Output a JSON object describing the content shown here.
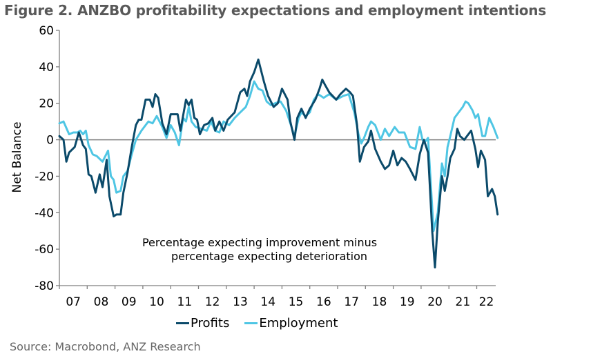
{
  "chart_data": {
    "type": "line",
    "title": "Figure 2.  ANZBO profitability expectations and employment intentions",
    "xlabel": "",
    "ylabel": "Net Balance",
    "ylim": [
      -80,
      60
    ],
    "yticks": [
      60,
      40,
      20,
      0,
      -20,
      -40,
      -60,
      -80
    ],
    "xlim": [
      2007,
      2022.67
    ],
    "xtick_labels": [
      "07",
      "08",
      "09",
      "10",
      "11",
      "12",
      "13",
      "14",
      "15",
      "16",
      "17",
      "18",
      "19",
      "20",
      "21",
      "22"
    ],
    "grid": false,
    "zero_line": true,
    "legend_placement": "bottom-center",
    "annotation": [
      "Percentage expecting improvement minus",
      "percentage expecting deterioration"
    ],
    "series": [
      {
        "name": "Profits",
        "color": "#0b4a6a",
        "points": [
          [
            2007.0,
            2
          ],
          [
            2007.15,
            0
          ],
          [
            2007.25,
            -12
          ],
          [
            2007.35,
            -7
          ],
          [
            2007.55,
            -4
          ],
          [
            2007.7,
            4
          ],
          [
            2007.85,
            -3
          ],
          [
            2007.95,
            -5
          ],
          [
            2008.05,
            -19
          ],
          [
            2008.15,
            -20
          ],
          [
            2008.3,
            -29
          ],
          [
            2008.45,
            -19
          ],
          [
            2008.55,
            -26
          ],
          [
            2008.7,
            -11
          ],
          [
            2008.8,
            -31
          ],
          [
            2008.95,
            -42
          ],
          [
            2009.05,
            -41
          ],
          [
            2009.2,
            -41
          ],
          [
            2009.3,
            -29
          ],
          [
            2009.45,
            -18
          ],
          [
            2009.6,
            -4
          ],
          [
            2009.75,
            8
          ],
          [
            2009.85,
            11
          ],
          [
            2009.95,
            11
          ],
          [
            2010.1,
            22
          ],
          [
            2010.25,
            22
          ],
          [
            2010.35,
            18
          ],
          [
            2010.45,
            25
          ],
          [
            2010.55,
            23
          ],
          [
            2010.7,
            9
          ],
          [
            2010.85,
            3
          ],
          [
            2011.0,
            14
          ],
          [
            2011.1,
            14
          ],
          [
            2011.25,
            14
          ],
          [
            2011.35,
            5
          ],
          [
            2011.55,
            22
          ],
          [
            2011.65,
            19
          ],
          [
            2011.75,
            22
          ],
          [
            2011.85,
            12
          ],
          [
            2011.95,
            11
          ],
          [
            2012.05,
            3
          ],
          [
            2012.2,
            8
          ],
          [
            2012.35,
            9
          ],
          [
            2012.5,
            12
          ],
          [
            2012.6,
            5
          ],
          [
            2012.75,
            10
          ],
          [
            2012.9,
            5
          ],
          [
            2013.05,
            11
          ],
          [
            2013.3,
            15
          ],
          [
            2013.5,
            26
          ],
          [
            2013.65,
            28
          ],
          [
            2013.75,
            24
          ],
          [
            2013.85,
            32
          ],
          [
            2014.0,
            37
          ],
          [
            2014.15,
            44
          ],
          [
            2014.35,
            32
          ],
          [
            2014.5,
            24
          ],
          [
            2014.7,
            18
          ],
          [
            2014.85,
            20
          ],
          [
            2015.0,
            28
          ],
          [
            2015.2,
            22
          ],
          [
            2015.3,
            10
          ],
          [
            2015.45,
            0
          ],
          [
            2015.55,
            12
          ],
          [
            2015.7,
            17
          ],
          [
            2015.85,
            12
          ],
          [
            2016.0,
            17
          ],
          [
            2016.2,
            22
          ],
          [
            2016.35,
            28
          ],
          [
            2016.45,
            33
          ],
          [
            2016.55,
            30
          ],
          [
            2016.7,
            26
          ],
          [
            2016.95,
            22
          ],
          [
            2017.1,
            25
          ],
          [
            2017.3,
            28
          ],
          [
            2017.45,
            26
          ],
          [
            2017.55,
            24
          ],
          [
            2017.7,
            8
          ],
          [
            2017.8,
            -12
          ],
          [
            2017.95,
            -4
          ],
          [
            2018.1,
            -1
          ],
          [
            2018.2,
            5
          ],
          [
            2018.35,
            -5
          ],
          [
            2018.55,
            -12
          ],
          [
            2018.7,
            -16
          ],
          [
            2018.85,
            -14
          ],
          [
            2019.0,
            -6
          ],
          [
            2019.15,
            -14
          ],
          [
            2019.3,
            -10
          ],
          [
            2019.45,
            -12
          ],
          [
            2019.6,
            -16
          ],
          [
            2019.8,
            -22
          ],
          [
            2019.95,
            -8
          ],
          [
            2020.1,
            0
          ],
          [
            2020.25,
            -7
          ],
          [
            2020.4,
            -50
          ],
          [
            2020.5,
            -70
          ],
          [
            2020.6,
            -45
          ],
          [
            2020.75,
            -20
          ],
          [
            2020.85,
            -28
          ],
          [
            2020.95,
            -20
          ],
          [
            2021.05,
            -10
          ],
          [
            2021.2,
            -5
          ],
          [
            2021.3,
            6
          ],
          [
            2021.4,
            2
          ],
          [
            2021.55,
            0
          ],
          [
            2021.7,
            3
          ],
          [
            2021.8,
            5
          ],
          [
            2021.95,
            -5
          ],
          [
            2022.05,
            -15
          ],
          [
            2022.15,
            -6
          ],
          [
            2022.3,
            -11
          ],
          [
            2022.4,
            -31
          ],
          [
            2022.55,
            -27
          ],
          [
            2022.65,
            -31
          ],
          [
            2022.75,
            -41
          ]
        ]
      },
      {
        "name": "Employment",
        "color": "#4fc6e4",
        "points": [
          [
            2007.0,
            9
          ],
          [
            2007.15,
            10
          ],
          [
            2007.35,
            3
          ],
          [
            2007.5,
            4
          ],
          [
            2007.65,
            4
          ],
          [
            2007.75,
            5
          ],
          [
            2007.85,
            3
          ],
          [
            2007.95,
            5
          ],
          [
            2008.05,
            -3
          ],
          [
            2008.2,
            -8
          ],
          [
            2008.35,
            -9
          ],
          [
            2008.55,
            -12
          ],
          [
            2008.75,
            -6
          ],
          [
            2008.85,
            -20
          ],
          [
            2008.95,
            -22
          ],
          [
            2009.05,
            -29
          ],
          [
            2009.2,
            -28
          ],
          [
            2009.3,
            -20
          ],
          [
            2009.45,
            -17
          ],
          [
            2009.6,
            -8
          ],
          [
            2009.75,
            0
          ],
          [
            2009.95,
            5
          ],
          [
            2010.1,
            8
          ],
          [
            2010.2,
            10
          ],
          [
            2010.35,
            9
          ],
          [
            2010.5,
            13
          ],
          [
            2010.7,
            7
          ],
          [
            2010.85,
            1
          ],
          [
            2011.0,
            8
          ],
          [
            2011.15,
            4
          ],
          [
            2011.3,
            -3
          ],
          [
            2011.45,
            12
          ],
          [
            2011.55,
            10
          ],
          [
            2011.65,
            18
          ],
          [
            2011.75,
            10
          ],
          [
            2011.9,
            7
          ],
          [
            2012.1,
            6
          ],
          [
            2012.3,
            5
          ],
          [
            2012.45,
            10
          ],
          [
            2012.6,
            5
          ],
          [
            2012.75,
            4
          ],
          [
            2012.9,
            10
          ],
          [
            2013.1,
            8
          ],
          [
            2013.3,
            12
          ],
          [
            2013.5,
            15
          ],
          [
            2013.7,
            18
          ],
          [
            2013.85,
            24
          ],
          [
            2014.0,
            32
          ],
          [
            2014.15,
            28
          ],
          [
            2014.3,
            27
          ],
          [
            2014.45,
            21
          ],
          [
            2014.6,
            19
          ],
          [
            2014.75,
            20
          ],
          [
            2014.95,
            21
          ],
          [
            2015.15,
            16
          ],
          [
            2015.3,
            9
          ],
          [
            2015.45,
            2
          ],
          [
            2015.6,
            12
          ],
          [
            2015.7,
            15
          ],
          [
            2015.85,
            13
          ],
          [
            2016.0,
            15
          ],
          [
            2016.15,
            22
          ],
          [
            2016.3,
            25
          ],
          [
            2016.5,
            23
          ],
          [
            2016.7,
            25
          ],
          [
            2016.95,
            22
          ],
          [
            2017.2,
            24
          ],
          [
            2017.4,
            25
          ],
          [
            2017.6,
            15
          ],
          [
            2017.75,
            3
          ],
          [
            2017.85,
            -2
          ],
          [
            2017.95,
            1
          ],
          [
            2018.1,
            7
          ],
          [
            2018.2,
            10
          ],
          [
            2018.35,
            8
          ],
          [
            2018.55,
            0
          ],
          [
            2018.7,
            6
          ],
          [
            2018.85,
            2
          ],
          [
            2019.05,
            7
          ],
          [
            2019.2,
            4
          ],
          [
            2019.4,
            4
          ],
          [
            2019.6,
            -4
          ],
          [
            2019.8,
            -5
          ],
          [
            2019.95,
            7
          ],
          [
            2020.05,
            0
          ],
          [
            2020.15,
            -1
          ],
          [
            2020.25,
            1
          ],
          [
            2020.45,
            -50
          ],
          [
            2020.6,
            -40
          ],
          [
            2020.75,
            -13
          ],
          [
            2020.85,
            -20
          ],
          [
            2020.95,
            -4
          ],
          [
            2021.05,
            2
          ],
          [
            2021.2,
            12
          ],
          [
            2021.35,
            15
          ],
          [
            2021.5,
            18
          ],
          [
            2021.6,
            21
          ],
          [
            2021.7,
            20
          ],
          [
            2021.85,
            16
          ],
          [
            2021.95,
            12
          ],
          [
            2022.05,
            14
          ],
          [
            2022.2,
            2
          ],
          [
            2022.3,
            2
          ],
          [
            2022.45,
            12
          ],
          [
            2022.6,
            7
          ],
          [
            2022.75,
            1
          ]
        ]
      }
    ]
  },
  "source": "Source: Macrobond, ANZ Research"
}
